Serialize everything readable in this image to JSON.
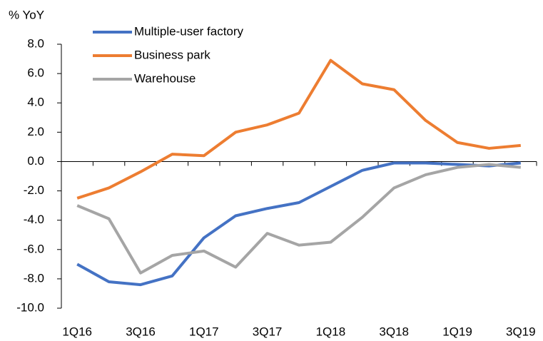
{
  "chart_data": {
    "type": "line",
    "y_axis_label": "% YoY",
    "categories": [
      "1Q16",
      null,
      "3Q16",
      null,
      "1Q17",
      null,
      "3Q17",
      null,
      "1Q18",
      null,
      "3Q18",
      null,
      "1Q19",
      null,
      "3Q19"
    ],
    "series": [
      {
        "name": "Multiple-user factory",
        "color": "#4472c4",
        "values": [
          -7.0,
          -8.2,
          -8.4,
          -7.8,
          -5.2,
          -3.7,
          -3.2,
          -2.8,
          -1.7,
          -0.6,
          -0.1,
          -0.1,
          -0.2,
          -0.3,
          -0.1
        ]
      },
      {
        "name": "Business park",
        "color": "#ed7d31",
        "values": [
          -2.5,
          -1.8,
          -0.7,
          0.5,
          0.4,
          2.0,
          2.5,
          3.3,
          6.9,
          5.3,
          4.9,
          2.8,
          1.3,
          0.9,
          1.1
        ]
      },
      {
        "name": "Warehouse",
        "color": "#a5a5a5",
        "values": [
          -3.0,
          -3.9,
          -7.6,
          -6.4,
          -6.1,
          -7.2,
          -4.9,
          -5.7,
          -5.5,
          -3.8,
          -1.8,
          -0.9,
          -0.4,
          -0.2,
          -0.4
        ]
      }
    ],
    "ylim": [
      -10,
      8
    ],
    "yticks": [
      {
        "value": -10,
        "label": "-10.0"
      },
      {
        "value": -8,
        "label": "-8.0"
      },
      {
        "value": -6,
        "label": "-6.0"
      },
      {
        "value": -4,
        "label": "-4.0"
      },
      {
        "value": -2,
        "label": "-2.0"
      },
      {
        "value": 0,
        "label": "0.0"
      },
      {
        "value": 2,
        "label": "2.0"
      },
      {
        "value": 4,
        "label": "4.0"
      },
      {
        "value": 6,
        "label": "6.0"
      },
      {
        "value": 8,
        "label": "8.0"
      }
    ],
    "legend": "top-left"
  }
}
